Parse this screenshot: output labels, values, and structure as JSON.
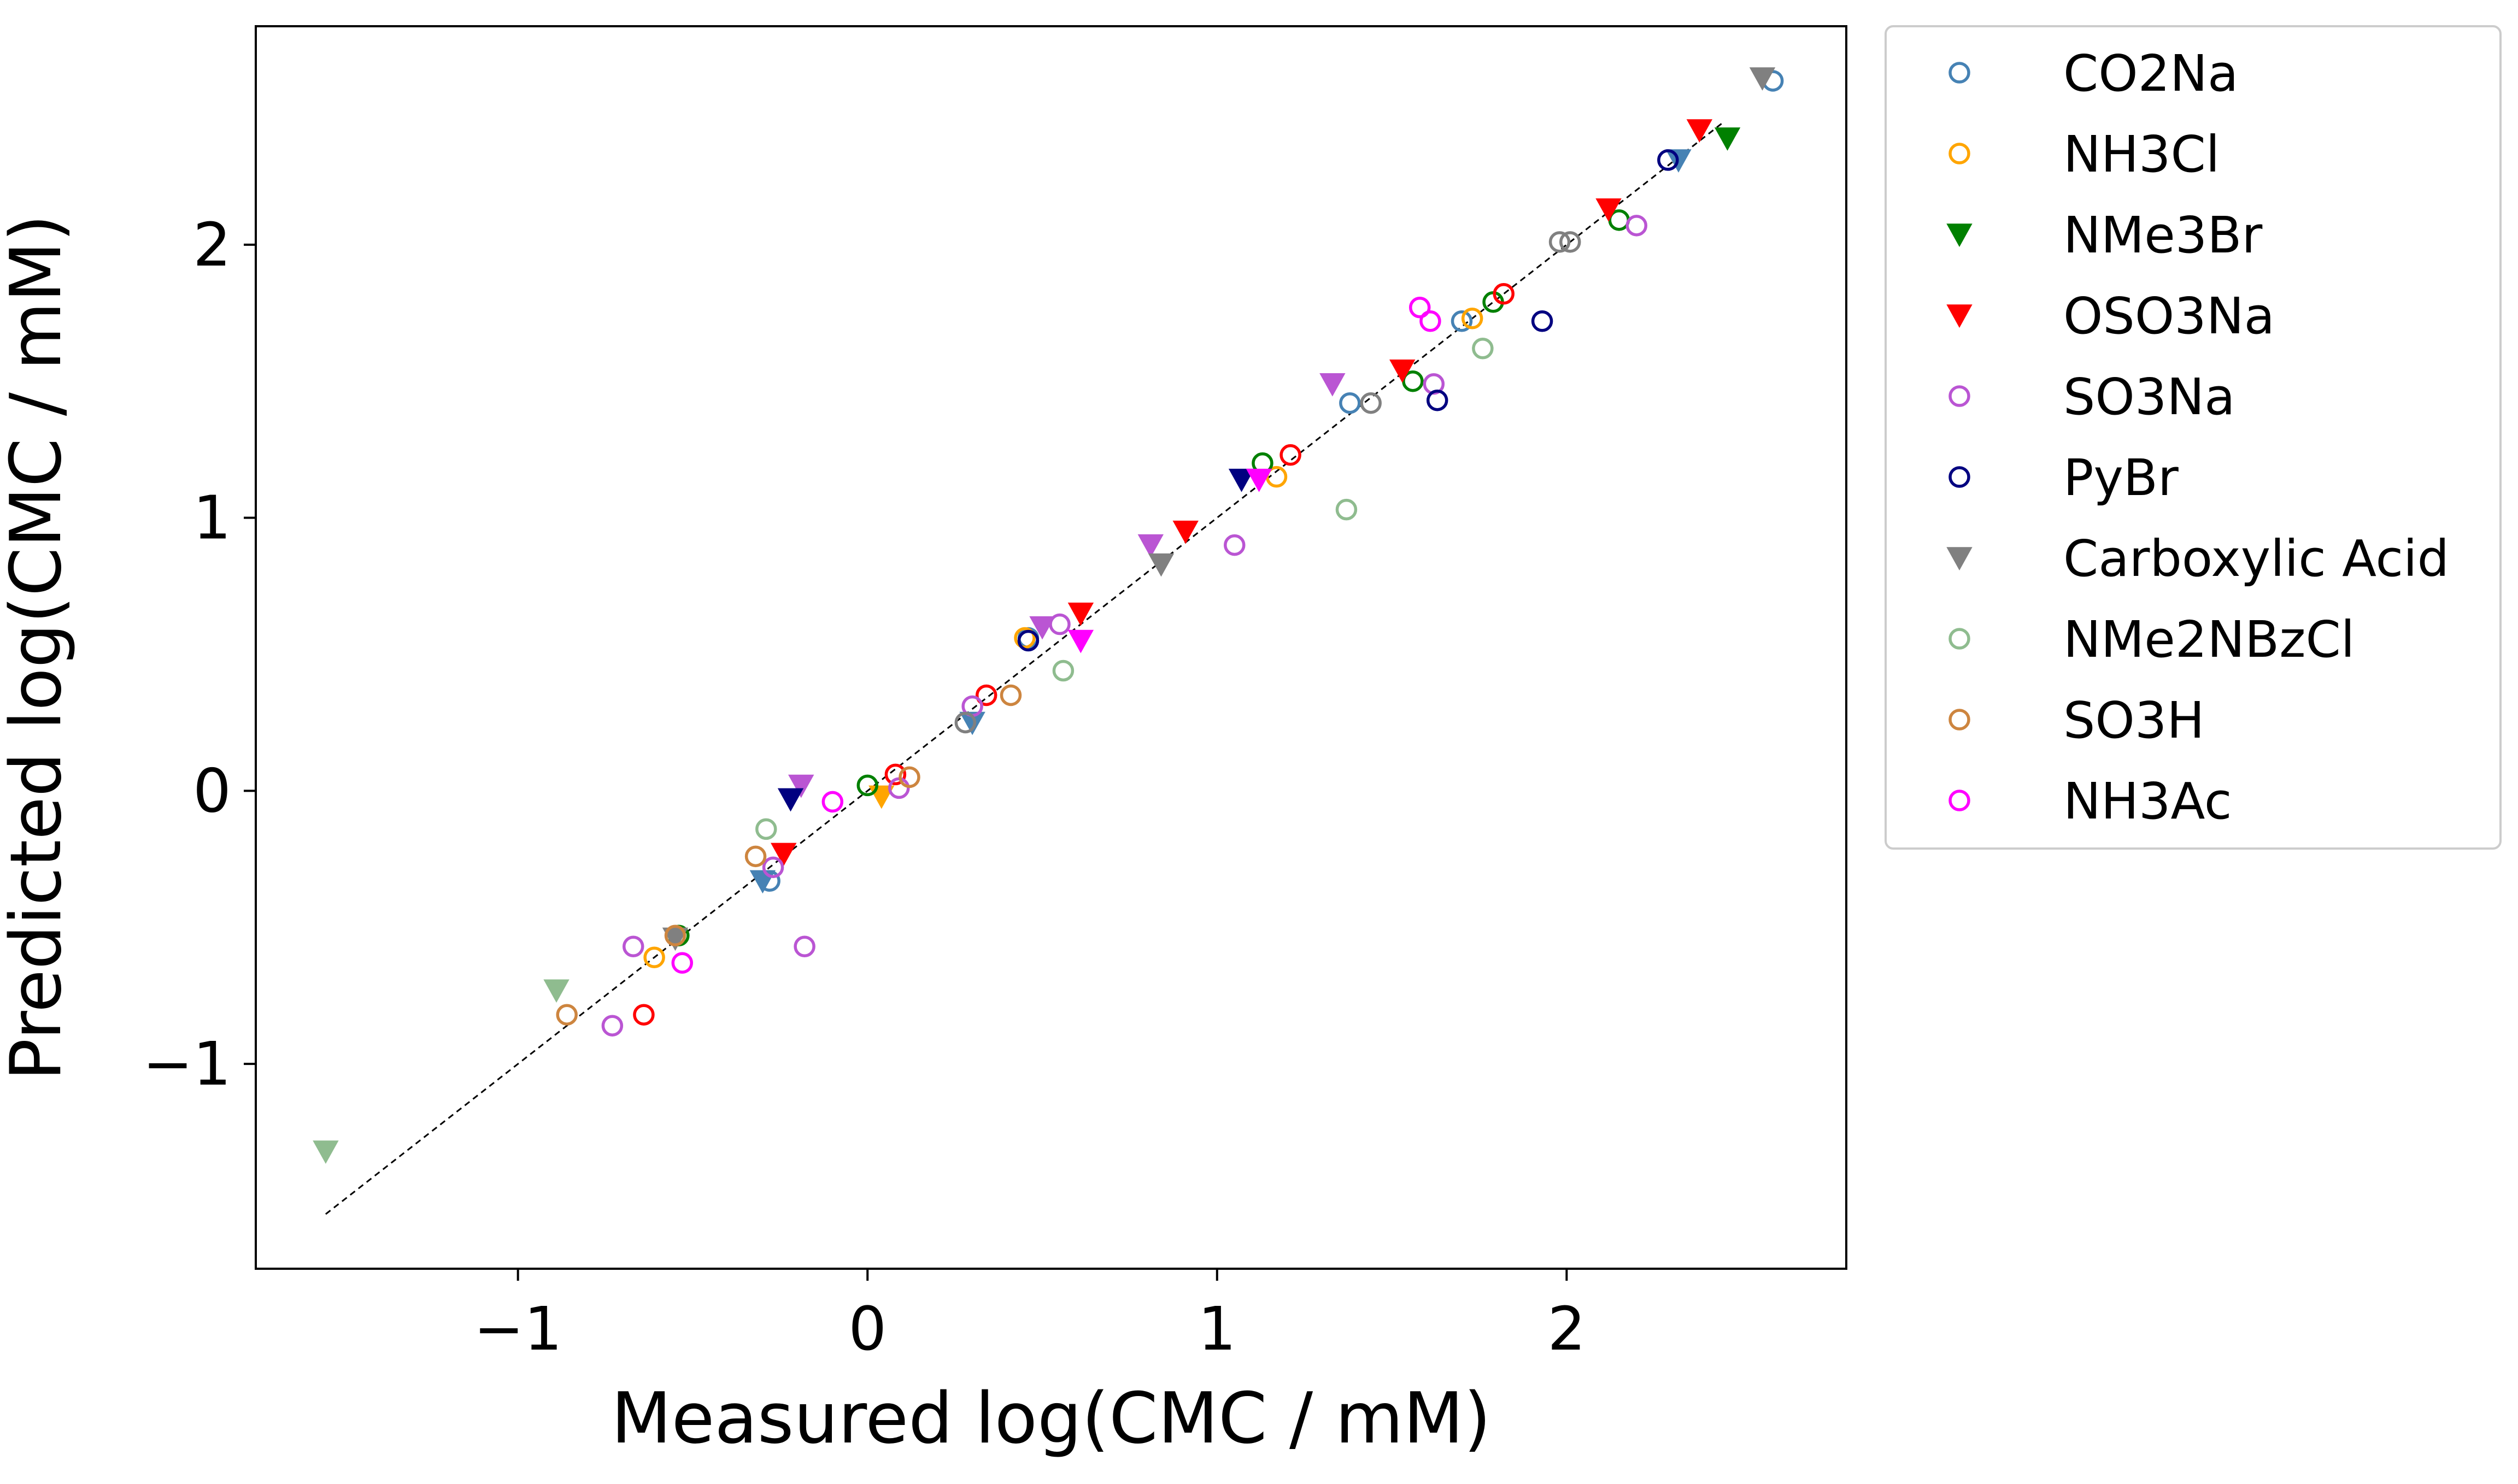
{
  "chart_data": {
    "type": "scatter",
    "title": "",
    "xlabel": "Measured log(CMC / mM)",
    "ylabel": "Predicted log(CMC / mM)",
    "xlim": [
      -1.75,
      2.8
    ],
    "ylim": [
      -1.75,
      2.8
    ],
    "x_ticks": [
      -1,
      0,
      1,
      2
    ],
    "y_ticks": [
      -1,
      0,
      1,
      2
    ],
    "x_tick_labels": [
      "−1",
      "0",
      "1",
      "2"
    ],
    "y_tick_labels": [
      "−1",
      "0",
      "1",
      "2"
    ],
    "grid": false,
    "legend_position": "outside-right",
    "reference_line": {
      "style": "dashed",
      "color": "#000000",
      "x": [
        -1.55,
        2.45
      ],
      "y": [
        -1.55,
        2.45
      ]
    },
    "series": [
      {
        "name": "CO2Na",
        "color": "#4682b4",
        "open": [
          [
            1.38,
            1.42
          ],
          [
            1.7,
            1.72
          ],
          [
            2.59,
            2.6
          ],
          [
            0.46,
            0.56
          ],
          [
            -0.28,
            -0.33
          ]
        ],
        "filled": [
          [
            0.3,
            0.25
          ],
          [
            2.32,
            2.31
          ],
          [
            -0.3,
            -0.33
          ]
        ]
      },
      {
        "name": "NH3Cl",
        "color": "#ffa500",
        "open": [
          [
            -0.61,
            -0.61
          ],
          [
            0.45,
            0.56
          ],
          [
            1.17,
            1.15
          ],
          [
            1.73,
            1.73
          ]
        ],
        "filled": [
          [
            0.04,
            -0.02
          ]
        ]
      },
      {
        "name": "NMe3Br",
        "color": "#008000",
        "open": [
          [
            0.0,
            0.02
          ],
          [
            1.13,
            1.2
          ],
          [
            1.56,
            1.5
          ],
          [
            1.79,
            1.79
          ],
          [
            2.15,
            2.09
          ],
          [
            -0.54,
            -0.53
          ]
        ],
        "filled": [
          [
            2.46,
            2.39
          ]
        ]
      },
      {
        "name": "OSO3Na",
        "color": "#ff0000",
        "open": [
          [
            -0.64,
            -0.82
          ],
          [
            0.08,
            0.06
          ],
          [
            0.34,
            0.35
          ],
          [
            1.21,
            1.23
          ],
          [
            1.82,
            1.82
          ]
        ],
        "filled": [
          [
            -0.24,
            -0.23
          ],
          [
            0.61,
            0.65
          ],
          [
            0.91,
            0.95
          ],
          [
            1.53,
            1.54
          ],
          [
            2.12,
            2.13
          ],
          [
            2.38,
            2.42
          ]
        ]
      },
      {
        "name": "SO3Na",
        "color": "#ba55d3",
        "open": [
          [
            -0.67,
            -0.57
          ],
          [
            -0.73,
            -0.86
          ],
          [
            -0.18,
            -0.57
          ],
          [
            -0.27,
            -0.28
          ],
          [
            0.09,
            0.01
          ],
          [
            0.3,
            0.31
          ],
          [
            0.55,
            0.61
          ],
          [
            1.05,
            0.9
          ],
          [
            1.62,
            1.49
          ],
          [
            2.2,
            2.07
          ]
        ],
        "filled": [
          [
            -0.19,
            0.02
          ],
          [
            0.5,
            0.6
          ],
          [
            0.81,
            0.9
          ],
          [
            1.33,
            1.49
          ]
        ]
      },
      {
        "name": "PyBr",
        "color": "#000080",
        "open": [
          [
            0.46,
            0.55
          ],
          [
            1.63,
            1.43
          ],
          [
            1.93,
            1.72
          ],
          [
            2.29,
            2.31
          ]
        ],
        "filled": [
          [
            -0.22,
            -0.03
          ],
          [
            1.07,
            1.14
          ]
        ]
      },
      {
        "name": "Carboxylic Acid",
        "color": "#808080",
        "open": [
          [
            1.44,
            1.42
          ],
          [
            1.98,
            2.01
          ],
          [
            2.01,
            2.01
          ],
          [
            0.28,
            0.25
          ]
        ],
        "filled": [
          [
            0.84,
            0.83
          ],
          [
            2.56,
            2.61
          ],
          [
            -0.55,
            -0.54
          ]
        ]
      },
      {
        "name": "NMe2NBzCl",
        "color": "#8fbc8f",
        "open": [
          [
            -0.29,
            -0.14
          ],
          [
            0.56,
            0.44
          ],
          [
            1.37,
            1.03
          ],
          [
            1.76,
            1.62
          ]
        ],
        "filled": [
          [
            -1.55,
            -1.32
          ],
          [
            -0.89,
            -0.73
          ]
        ]
      },
      {
        "name": "SO3H",
        "color": "#cd853f",
        "open": [
          [
            -0.86,
            -0.82
          ],
          [
            -0.32,
            -0.24
          ],
          [
            -0.55,
            -0.53
          ],
          [
            0.12,
            0.05
          ],
          [
            0.41,
            0.35
          ]
        ],
        "filled": []
      },
      {
        "name": "NH3Ac",
        "color": "#ff00ff",
        "open": [
          [
            -0.53,
            -0.63
          ],
          [
            -0.1,
            -0.04
          ],
          [
            1.58,
            1.77
          ],
          [
            1.61,
            1.72
          ]
        ],
        "filled": [
          [
            0.61,
            0.55
          ],
          [
            1.12,
            1.14
          ]
        ]
      }
    ]
  },
  "legend": {
    "entries": [
      {
        "label": "CO2Na",
        "marker": "open-circle",
        "color": "#4682b4"
      },
      {
        "label": "NH3Cl",
        "marker": "open-circle",
        "color": "#ffa500"
      },
      {
        "label": "NMe3Br",
        "marker": "filled-triangle-down",
        "color": "#008000"
      },
      {
        "label": "OSO3Na",
        "marker": "filled-triangle-down",
        "color": "#ff0000"
      },
      {
        "label": "SO3Na",
        "marker": "open-circle",
        "color": "#ba55d3"
      },
      {
        "label": "PyBr",
        "marker": "open-circle",
        "color": "#000080"
      },
      {
        "label": "Carboxylic Acid",
        "marker": "filled-triangle-down",
        "color": "#808080"
      },
      {
        "label": "NMe2NBzCl",
        "marker": "open-circle",
        "color": "#8fbc8f"
      },
      {
        "label": "SO3H",
        "marker": "open-circle",
        "color": "#cd853f"
      },
      {
        "label": "NH3Ac",
        "marker": "open-circle",
        "color": "#ff00ff"
      }
    ]
  }
}
